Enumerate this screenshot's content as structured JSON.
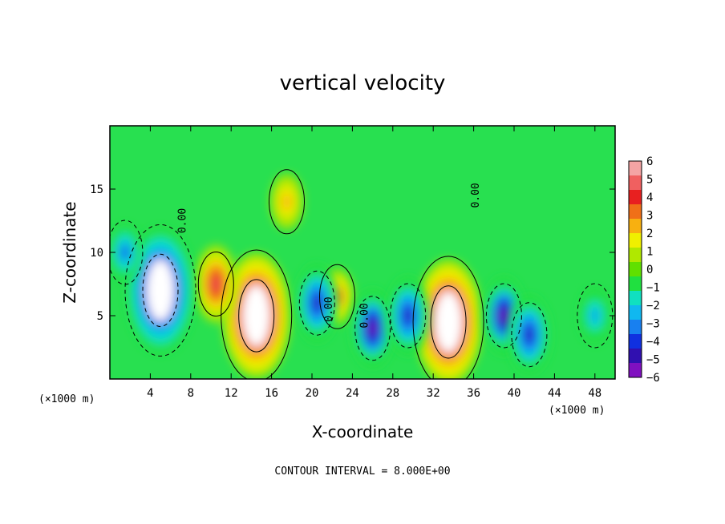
{
  "chart_data": {
    "type": "heatmap",
    "title": "vertical velocity",
    "xlabel": "X-coordinate",
    "ylabel": "Z-coordinate",
    "x_unit": "(×1000 m)",
    "y_unit": "(×1000 m)",
    "footer": "CONTOUR INTERVAL = 8.000E+00",
    "contour_label": "0.00",
    "xlim": [
      0,
      50
    ],
    "ylim": [
      0,
      20
    ],
    "x_ticks": [
      4,
      8,
      12,
      16,
      20,
      24,
      28,
      32,
      36,
      40,
      44,
      48
    ],
    "y_ticks": [
      5,
      10,
      15
    ],
    "colorbar": {
      "min": -6,
      "max": 6,
      "ticks": [
        "6",
        "5",
        "4",
        "3",
        "2",
        "1",
        "0",
        "−1",
        "−2",
        "−3",
        "−4",
        "−5",
        "−6"
      ],
      "colors": [
        "#f4a4a4",
        "#f06060",
        "#e82020",
        "#f07018",
        "#f8b010",
        "#f0f000",
        "#b0e800",
        "#60e000",
        "#20e040",
        "#10e0c0",
        "#10b8f0",
        "#1880f0",
        "#1030e0",
        "#3010b0",
        "#8010c0"
      ]
    },
    "features": [
      {
        "kind": "updraft",
        "x": 14.5,
        "z": 5,
        "peak": 8
      },
      {
        "kind": "updraft",
        "x": 33.5,
        "z": 4.5,
        "peak": 8
      },
      {
        "kind": "updraft",
        "x": 10.5,
        "z": 7.5,
        "peak": 5
      },
      {
        "kind": "updraft",
        "x": 17.5,
        "z": 14,
        "peak": 3
      },
      {
        "kind": "updraft",
        "x": 22.5,
        "z": 6.5,
        "peak": 4
      },
      {
        "kind": "downdraft",
        "x": 5,
        "z": 7,
        "peak": -8
      },
      {
        "kind": "downdraft",
        "x": 20.5,
        "z": 6,
        "peak": -5
      },
      {
        "kind": "downdraft",
        "x": 26,
        "z": 4,
        "peak": -6
      },
      {
        "kind": "downdraft",
        "x": 29.5,
        "z": 5,
        "peak": -5
      },
      {
        "kind": "downdraft",
        "x": 39,
        "z": 5,
        "peak": -6
      },
      {
        "kind": "downdraft",
        "x": 41.5,
        "z": 3.5,
        "peak": -5
      },
      {
        "kind": "downdraft",
        "x": 1.5,
        "z": 10,
        "peak": -4
      },
      {
        "kind": "downdraft",
        "x": 48,
        "z": 5,
        "peak": -3
      }
    ]
  }
}
